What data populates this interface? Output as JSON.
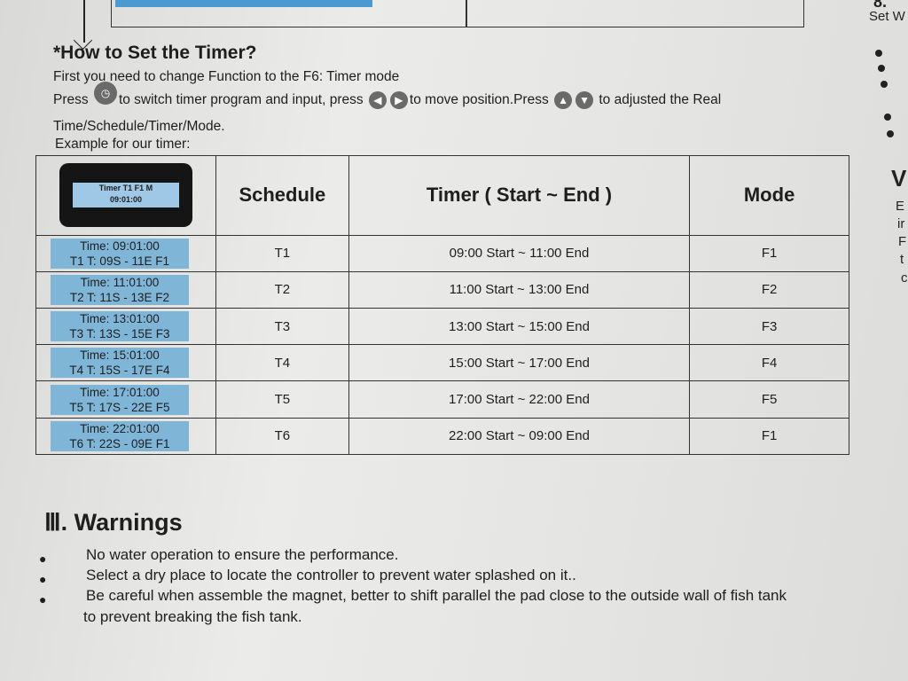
{
  "howto": {
    "title": "*How to Set the Timer?",
    "line1": "First you need to change Function to the F6: Timer mode",
    "line2_press": "Press",
    "line2_a": "to switch timer program and input, press",
    "line2_b": "to move position.Press",
    "line2_c": "to adjusted the Real",
    "line3": "Time/Schedule/Timer/Mode.",
    "example": "Example for our timer:",
    "icons": [
      "clock-button-icon",
      "left-arrow-button-icon",
      "right-arrow-button-icon",
      "up-arrow-button-icon",
      "down-arrow-button-icon"
    ]
  },
  "table": {
    "lcd": {
      "line1": "Timer   T1   F1   M",
      "line2": "09:01:00"
    },
    "headers": [
      "Schedule",
      "Timer ( Start ~ End )",
      "Mode"
    ],
    "rows": [
      {
        "display1": "Time: 09:01:00",
        "display2": "T1  T: 09S - 11E  F1",
        "schedule": "T1",
        "timer": "09:00 Start ~ 11:00 End",
        "mode": "F1"
      },
      {
        "display1": "Time: 11:01:00",
        "display2": "T2  T: 11S - 13E  F2",
        "schedule": "T2",
        "timer": "11:00 Start ~ 13:00 End",
        "mode": "F2"
      },
      {
        "display1": "Time: 13:01:00",
        "display2": "T3  T: 13S - 15E  F3",
        "schedule": "T3",
        "timer": "13:00 Start ~ 15:00 End",
        "mode": "F3"
      },
      {
        "display1": "Time: 15:01:00",
        "display2": "T4  T: 15S - 17E  F4",
        "schedule": "T4",
        "timer": "15:00 Start ~ 17:00 End",
        "mode": "F4"
      },
      {
        "display1": "Time: 17:01:00",
        "display2": "T5  T: 17S - 22E  F5",
        "schedule": "T5",
        "timer": "17:00 Start ~ 22:00 End",
        "mode": "F5"
      },
      {
        "display1": "Time: 22:01:00",
        "display2": "T6  T: 22S - 09E  F1",
        "schedule": "T6",
        "timer": "22:00 Start ~ 09:00 End",
        "mode": "F1"
      }
    ]
  },
  "warnings": {
    "title": "Ⅲ. Warnings",
    "items": [
      "No water operation to ensure the performance.",
      "Select a dry place to locate the controller to prevent water splashed on it..",
      "Be careful when assemble the magnet, better to shift parallel the pad close to the outside wall of fish tank",
      "to prevent breaking the fish tank."
    ]
  },
  "right_edge": {
    "top": "8.",
    "set": "Set W",
    "heading": "V",
    "lines": [
      "E",
      "ir",
      "F",
      "t",
      "c"
    ]
  },
  "colors": {
    "lcd_blue": "#9fc8e6",
    "cell_blue": "#7fb6d8",
    "paper": "#e6e6e4"
  }
}
